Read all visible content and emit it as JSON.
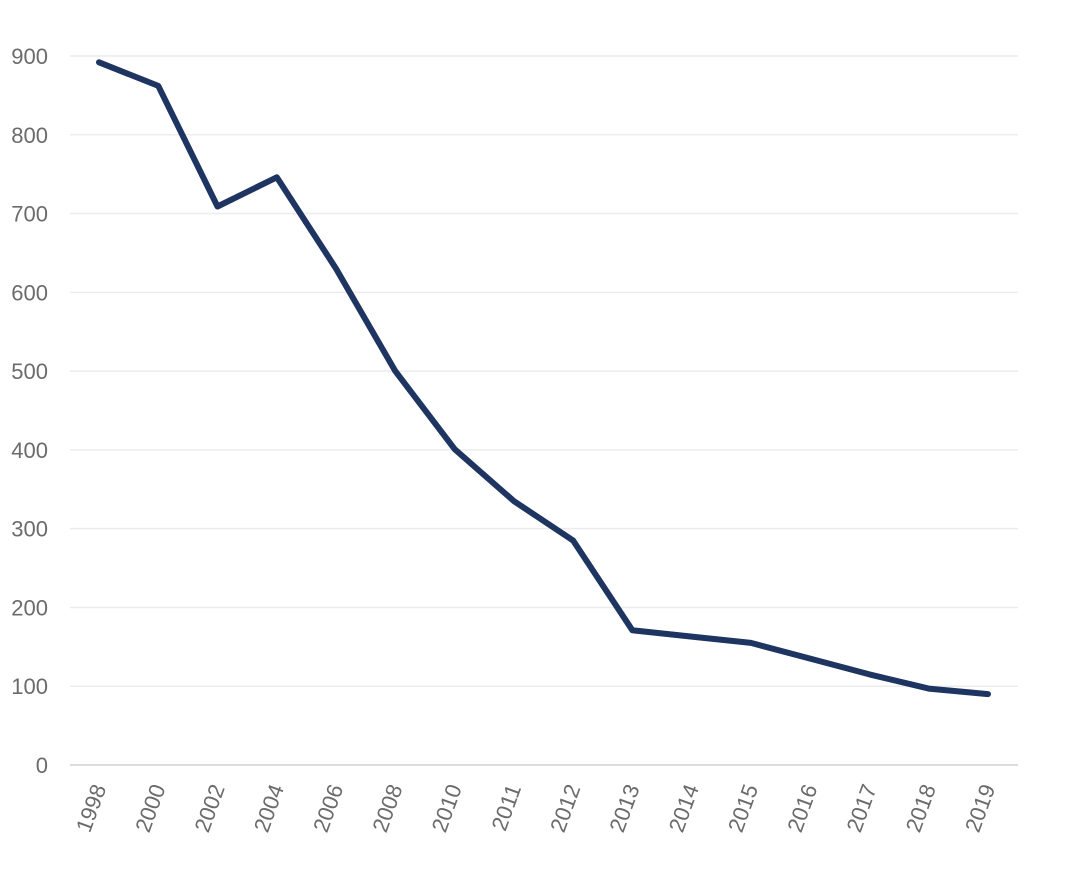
{
  "chart_data": {
    "type": "line",
    "title": "",
    "xlabel": "",
    "ylabel": "",
    "categories": [
      "1998",
      "2000",
      "2002",
      "2004",
      "2006",
      "2008",
      "2010",
      "2011",
      "2012",
      "2013",
      "2014",
      "2015",
      "2016",
      "2017",
      "2018",
      "2019"
    ],
    "series": [
      {
        "values": [
          892,
          862,
          709,
          746,
          630,
          500,
          401,
          335,
          285,
          171,
          163,
          155,
          135,
          115,
          97,
          90
        ],
        "color": "#1e3461"
      }
    ],
    "ylim": [
      0,
      900
    ],
    "yticks": [
      0,
      100,
      200,
      300,
      400,
      500,
      600,
      700,
      800,
      900
    ],
    "grid": true,
    "legend": "none"
  }
}
